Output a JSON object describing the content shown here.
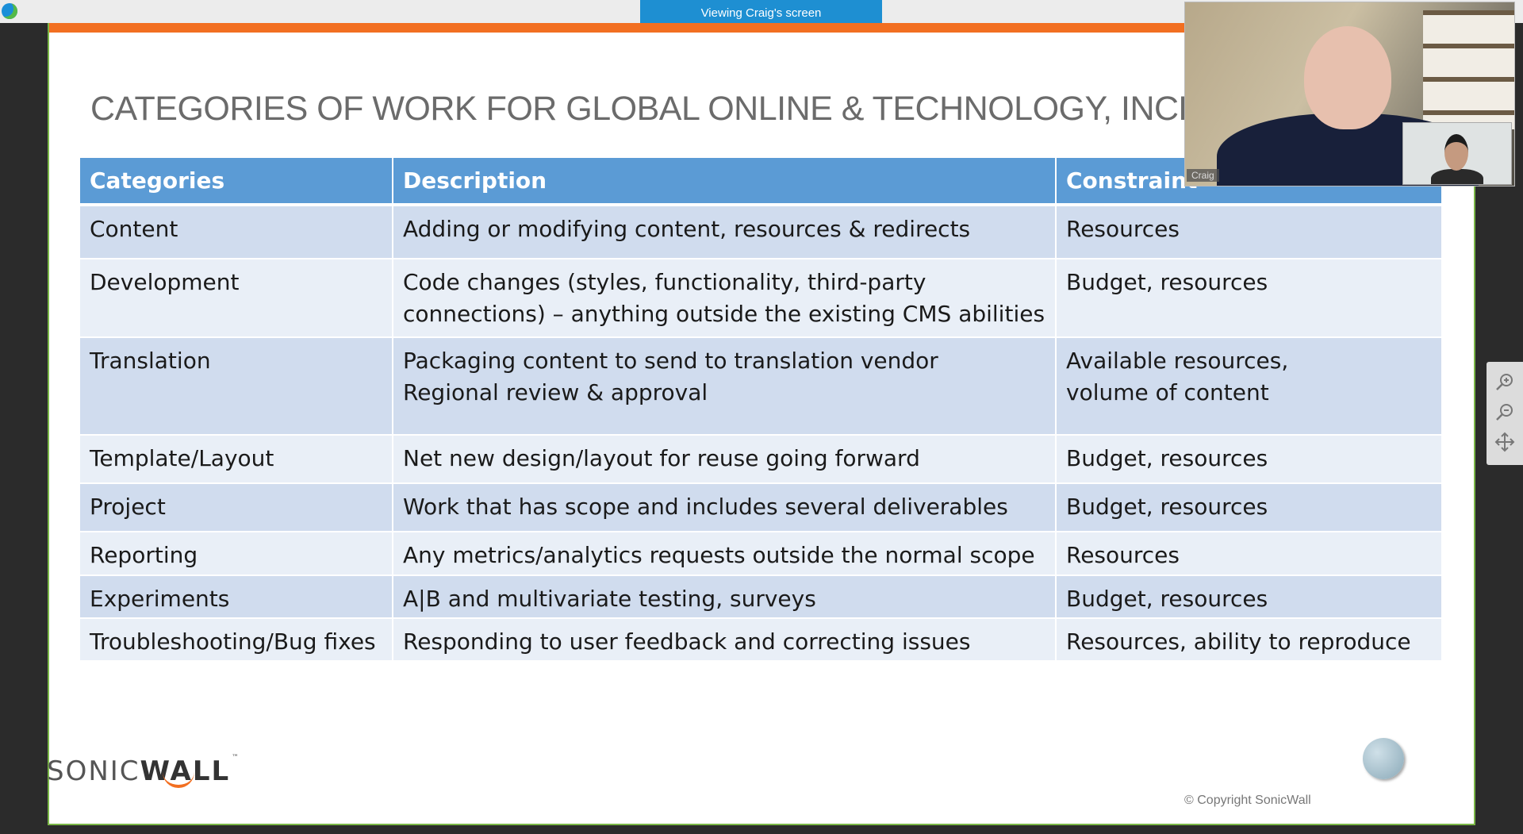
{
  "meeting": {
    "viewing_label": "Viewing Craig's screen",
    "presenter_name": "Craig"
  },
  "slide": {
    "title": "CATEGORIES OF WORK FOR GLOBAL ONLINE & TECHNOLOGY, INCLUDIN",
    "table": {
      "headers": [
        "Categories",
        "Description",
        "Constraint"
      ],
      "rows": [
        {
          "category": "Content",
          "description": [
            "Adding or modifying content, resources & redirects"
          ],
          "constraint": [
            "Resources"
          ]
        },
        {
          "category": "Development",
          "description": [
            "Code changes (styles, functionality, third-party",
            "connections) – anything outside the existing CMS abilities"
          ],
          "constraint": [
            "Budget, resources"
          ]
        },
        {
          "category": "Translation",
          "description": [
            "Packaging content to send to translation vendor",
            "Regional review & approval"
          ],
          "constraint": [
            "Available resources,",
            "volume of content"
          ]
        },
        {
          "category": "Template/Layout",
          "description": [
            "Net new design/layout for reuse going forward"
          ],
          "constraint": [
            "Budget, resources"
          ]
        },
        {
          "category": "Project",
          "description": [
            "Work that has scope and includes several deliverables"
          ],
          "constraint": [
            "Budget, resources"
          ]
        },
        {
          "category": "Reporting",
          "description": [
            "Any metrics/analytics requests outside the normal scope"
          ],
          "constraint": [
            "Resources"
          ]
        },
        {
          "category": "Experiments",
          "description": [
            "A|B and multivariate testing, surveys"
          ],
          "constraint": [
            "Budget, resources"
          ]
        },
        {
          "category": "Troubleshooting/Bug fixes",
          "description": [
            "Responding to user feedback and correcting issues"
          ],
          "constraint": [
            "Resources, ability to reproduce"
          ]
        }
      ]
    },
    "logo": {
      "part1": "SONIC",
      "part2": "WALL",
      "tm": "™"
    },
    "copyright": "© Copyright SonicWall"
  },
  "zoom_controls": {
    "zoom_in_icon": "zoom-in-icon",
    "zoom_out_icon": "zoom-out-icon",
    "move_icon": "move-icon"
  },
  "colors": {
    "accent_orange": "#f26f21",
    "header_blue": "#5b9bd5",
    "row_dark": "#d0dcee",
    "row_light": "#e9eff7",
    "banner_blue": "#1e8fd2",
    "border_green": "#7ab646"
  }
}
